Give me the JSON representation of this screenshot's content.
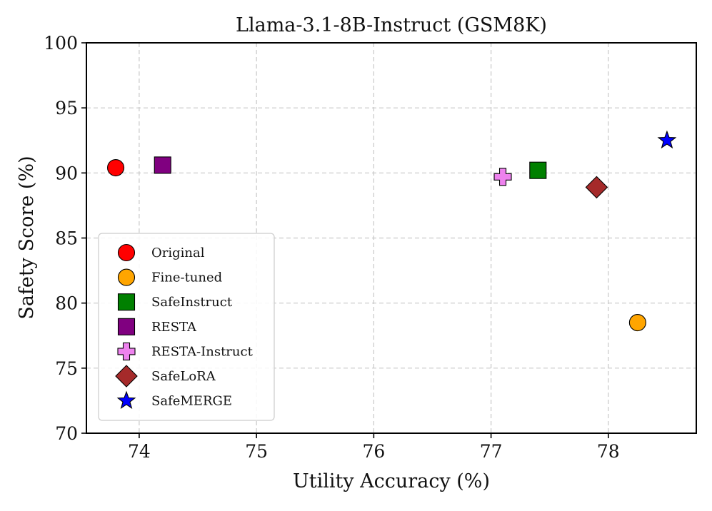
{
  "chart_data": {
    "type": "scatter",
    "title": "Llama-3.1-8B-Instruct (GSM8K)",
    "xlabel": "Utility Accuracy (%)",
    "ylabel": "Safety Score (%)",
    "xlim": [
      73.55,
      78.75
    ],
    "ylim": [
      70,
      100
    ],
    "xticks": [
      74,
      75,
      76,
      77,
      78
    ],
    "yticks": [
      70,
      75,
      80,
      85,
      90,
      95,
      100
    ],
    "grid": true,
    "legend_position": "lower-left",
    "series": [
      {
        "name": "Original",
        "marker": "circle",
        "color": "#ff0000",
        "x": 73.8,
        "y": 90.4
      },
      {
        "name": "Fine-tuned",
        "marker": "circle",
        "color": "#ffa500",
        "x": 78.25,
        "y": 78.5
      },
      {
        "name": "SafeInstruct",
        "marker": "square",
        "color": "#008000",
        "x": 77.4,
        "y": 90.2
      },
      {
        "name": "RESTA",
        "marker": "square",
        "color": "#800080",
        "x": 74.2,
        "y": 90.6
      },
      {
        "name": "RESTA-Instruct",
        "marker": "plus",
        "color": "#ee82ee",
        "x": 77.1,
        "y": 89.7
      },
      {
        "name": "SafeLoRA",
        "marker": "diamond",
        "color": "#a52a2a",
        "x": 77.9,
        "y": 88.9
      },
      {
        "name": "SafeMERGE",
        "marker": "star",
        "color": "#0000ff",
        "x": 78.5,
        "y": 92.5
      }
    ]
  }
}
